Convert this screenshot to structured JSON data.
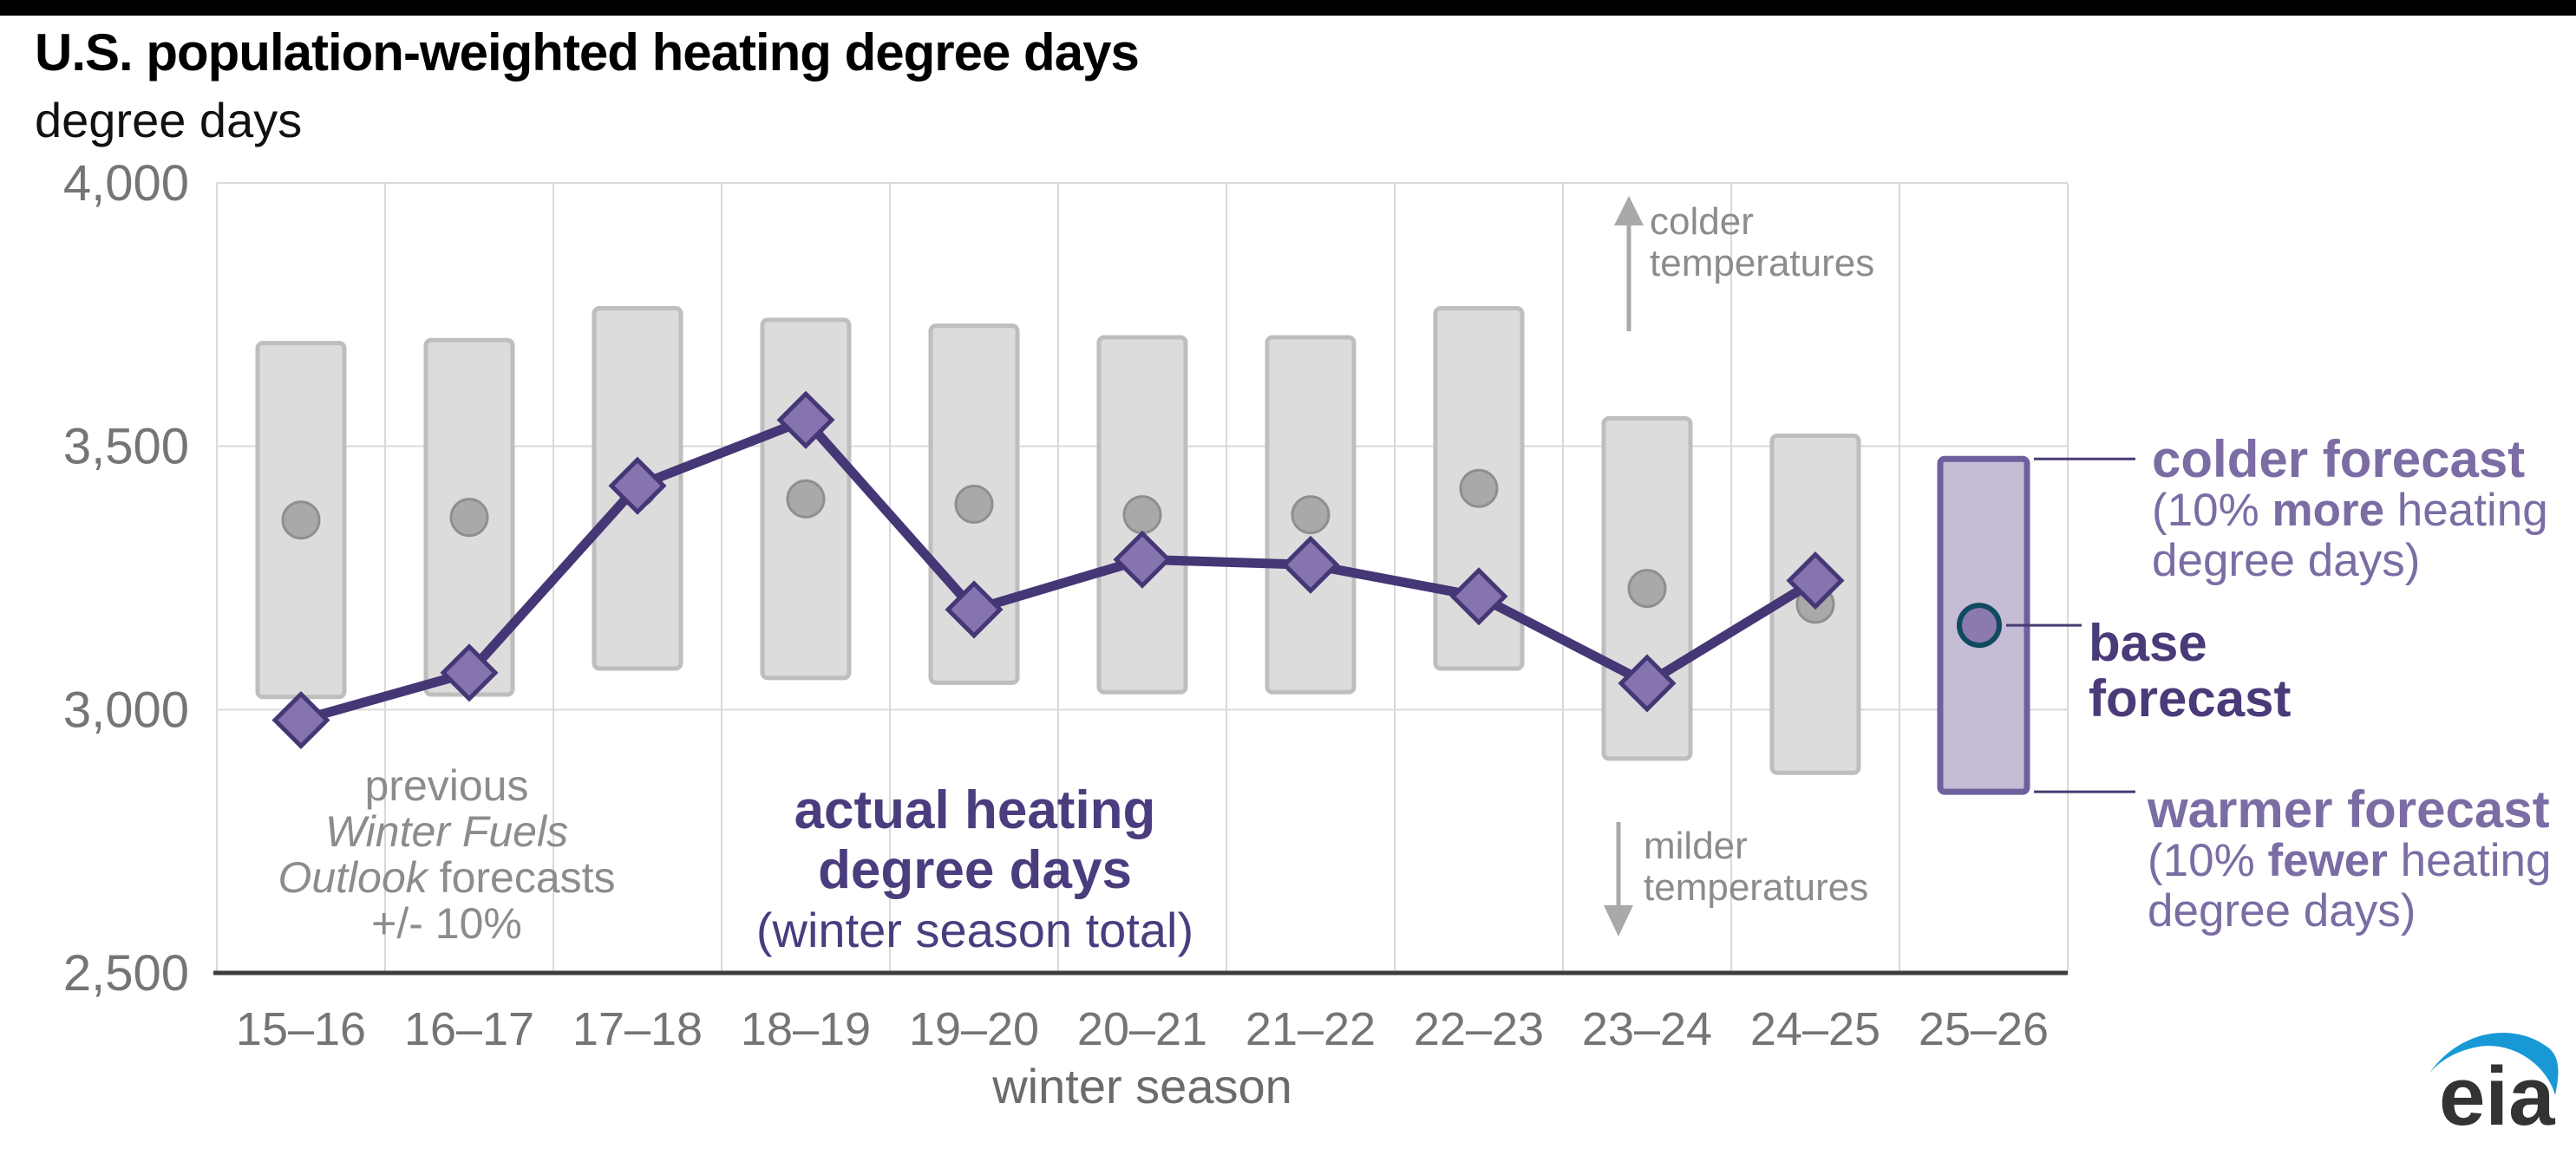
{
  "header": {
    "title": "U.S. population-weighted heating degree days",
    "unit": "degree days"
  },
  "chart_data": {
    "type": "combo (gray range bars = prior forecast ±10%, gray dots = prior base forecast, purple diamond line = actual)",
    "title": "U.S. population-weighted heating degree days",
    "ylabel": "degree days",
    "xlabel": "winter season",
    "ylim": [
      2500,
      4000
    ],
    "ytick_values": [
      2500,
      3000,
      3500,
      4000
    ],
    "ytick_labels": [
      "2,500",
      "3,000",
      "3,500",
      "4,000"
    ],
    "grid": "vertical column separators and horizontal lines at y ticks",
    "categories": [
      "15–16",
      "16–17",
      "17–18",
      "18–19",
      "19–20",
      "20–21",
      "21–22",
      "22–23",
      "23–24",
      "24–25",
      "25–26"
    ],
    "series": [
      {
        "name": "previous Winter Fuels Outlook base forecasts",
        "marker": "circle",
        "values": [
          3360,
          3365,
          3420,
          3400,
          3390,
          3370,
          3370,
          3420,
          3230,
          3200,
          null
        ]
      },
      {
        "name": "previous Winter Fuels Outlook forecast range +/- 10%",
        "marker": "range-bar",
        "range_pct": 10,
        "derived_from": "previous Winter Fuels Outlook base forecasts"
      },
      {
        "name": "actual heating degree days (winter season total)",
        "marker": "diamond-line",
        "values": [
          2980,
          3070,
          3425,
          3550,
          3190,
          3285,
          3275,
          3215,
          3050,
          3245,
          null
        ]
      }
    ],
    "forecast_2526": {
      "category": "25–26",
      "base": 3160,
      "colder_10pct_more": 3476,
      "warmer_10pct_fewer": 2844
    },
    "legend_position": "annotated directly on chart (no legend box)"
  },
  "annotations": {
    "previous_note": {
      "line1": "previous",
      "line2_italic": "Winter Fuels",
      "line3_italic": "Outlook",
      "line3_rest": " forecasts",
      "line4": "+/- 10%"
    },
    "actual_note": {
      "line1": "actual heating",
      "line2": "degree days",
      "line3": "(winter season total)"
    },
    "colder_temps": {
      "line1": "colder",
      "line2": "temperatures"
    },
    "milder_temps": {
      "line1": "milder",
      "line2": "temperatures"
    },
    "colder_forecast": {
      "title": "colder forecast",
      "pre": "(10% ",
      "emph": "more",
      "post": " heating",
      "line2": "degree days)"
    },
    "base_forecast": {
      "line1": "base",
      "line2": "forecast"
    },
    "warmer_forecast": {
      "title": "warmer forecast",
      "pre": "(10% ",
      "emph": "fewer",
      "post": " heating",
      "line2": "degree days)"
    }
  },
  "logo": {
    "text": "eia"
  },
  "colors": {
    "purple_dark": "#453776",
    "purple_mid_fill": "#8674ae",
    "purple_light_text": "#7b6da4",
    "forecast_bar_fill": "#c5bcd5",
    "forecast_bar_stroke": "#6e5f9e",
    "base_dot_fill": "#8b7aac",
    "base_dot_ring": "#114a5f",
    "gray_bar_fill": "#dcdcdc",
    "gray_bar_stroke": "#bebebe",
    "gray_dot_fill": "#a9a9a9",
    "gray_dot_stroke": "#8f8f8f",
    "gridline": "#d9d9d9",
    "axis_line": "#3d3d3d",
    "tick_text": "#757575",
    "note_gray": "#8c8c8c",
    "arrow_gray": "#a9a9a9",
    "connector": "#4a3a72",
    "logo_blue": "#1899d6",
    "logo_text": "#333333"
  }
}
